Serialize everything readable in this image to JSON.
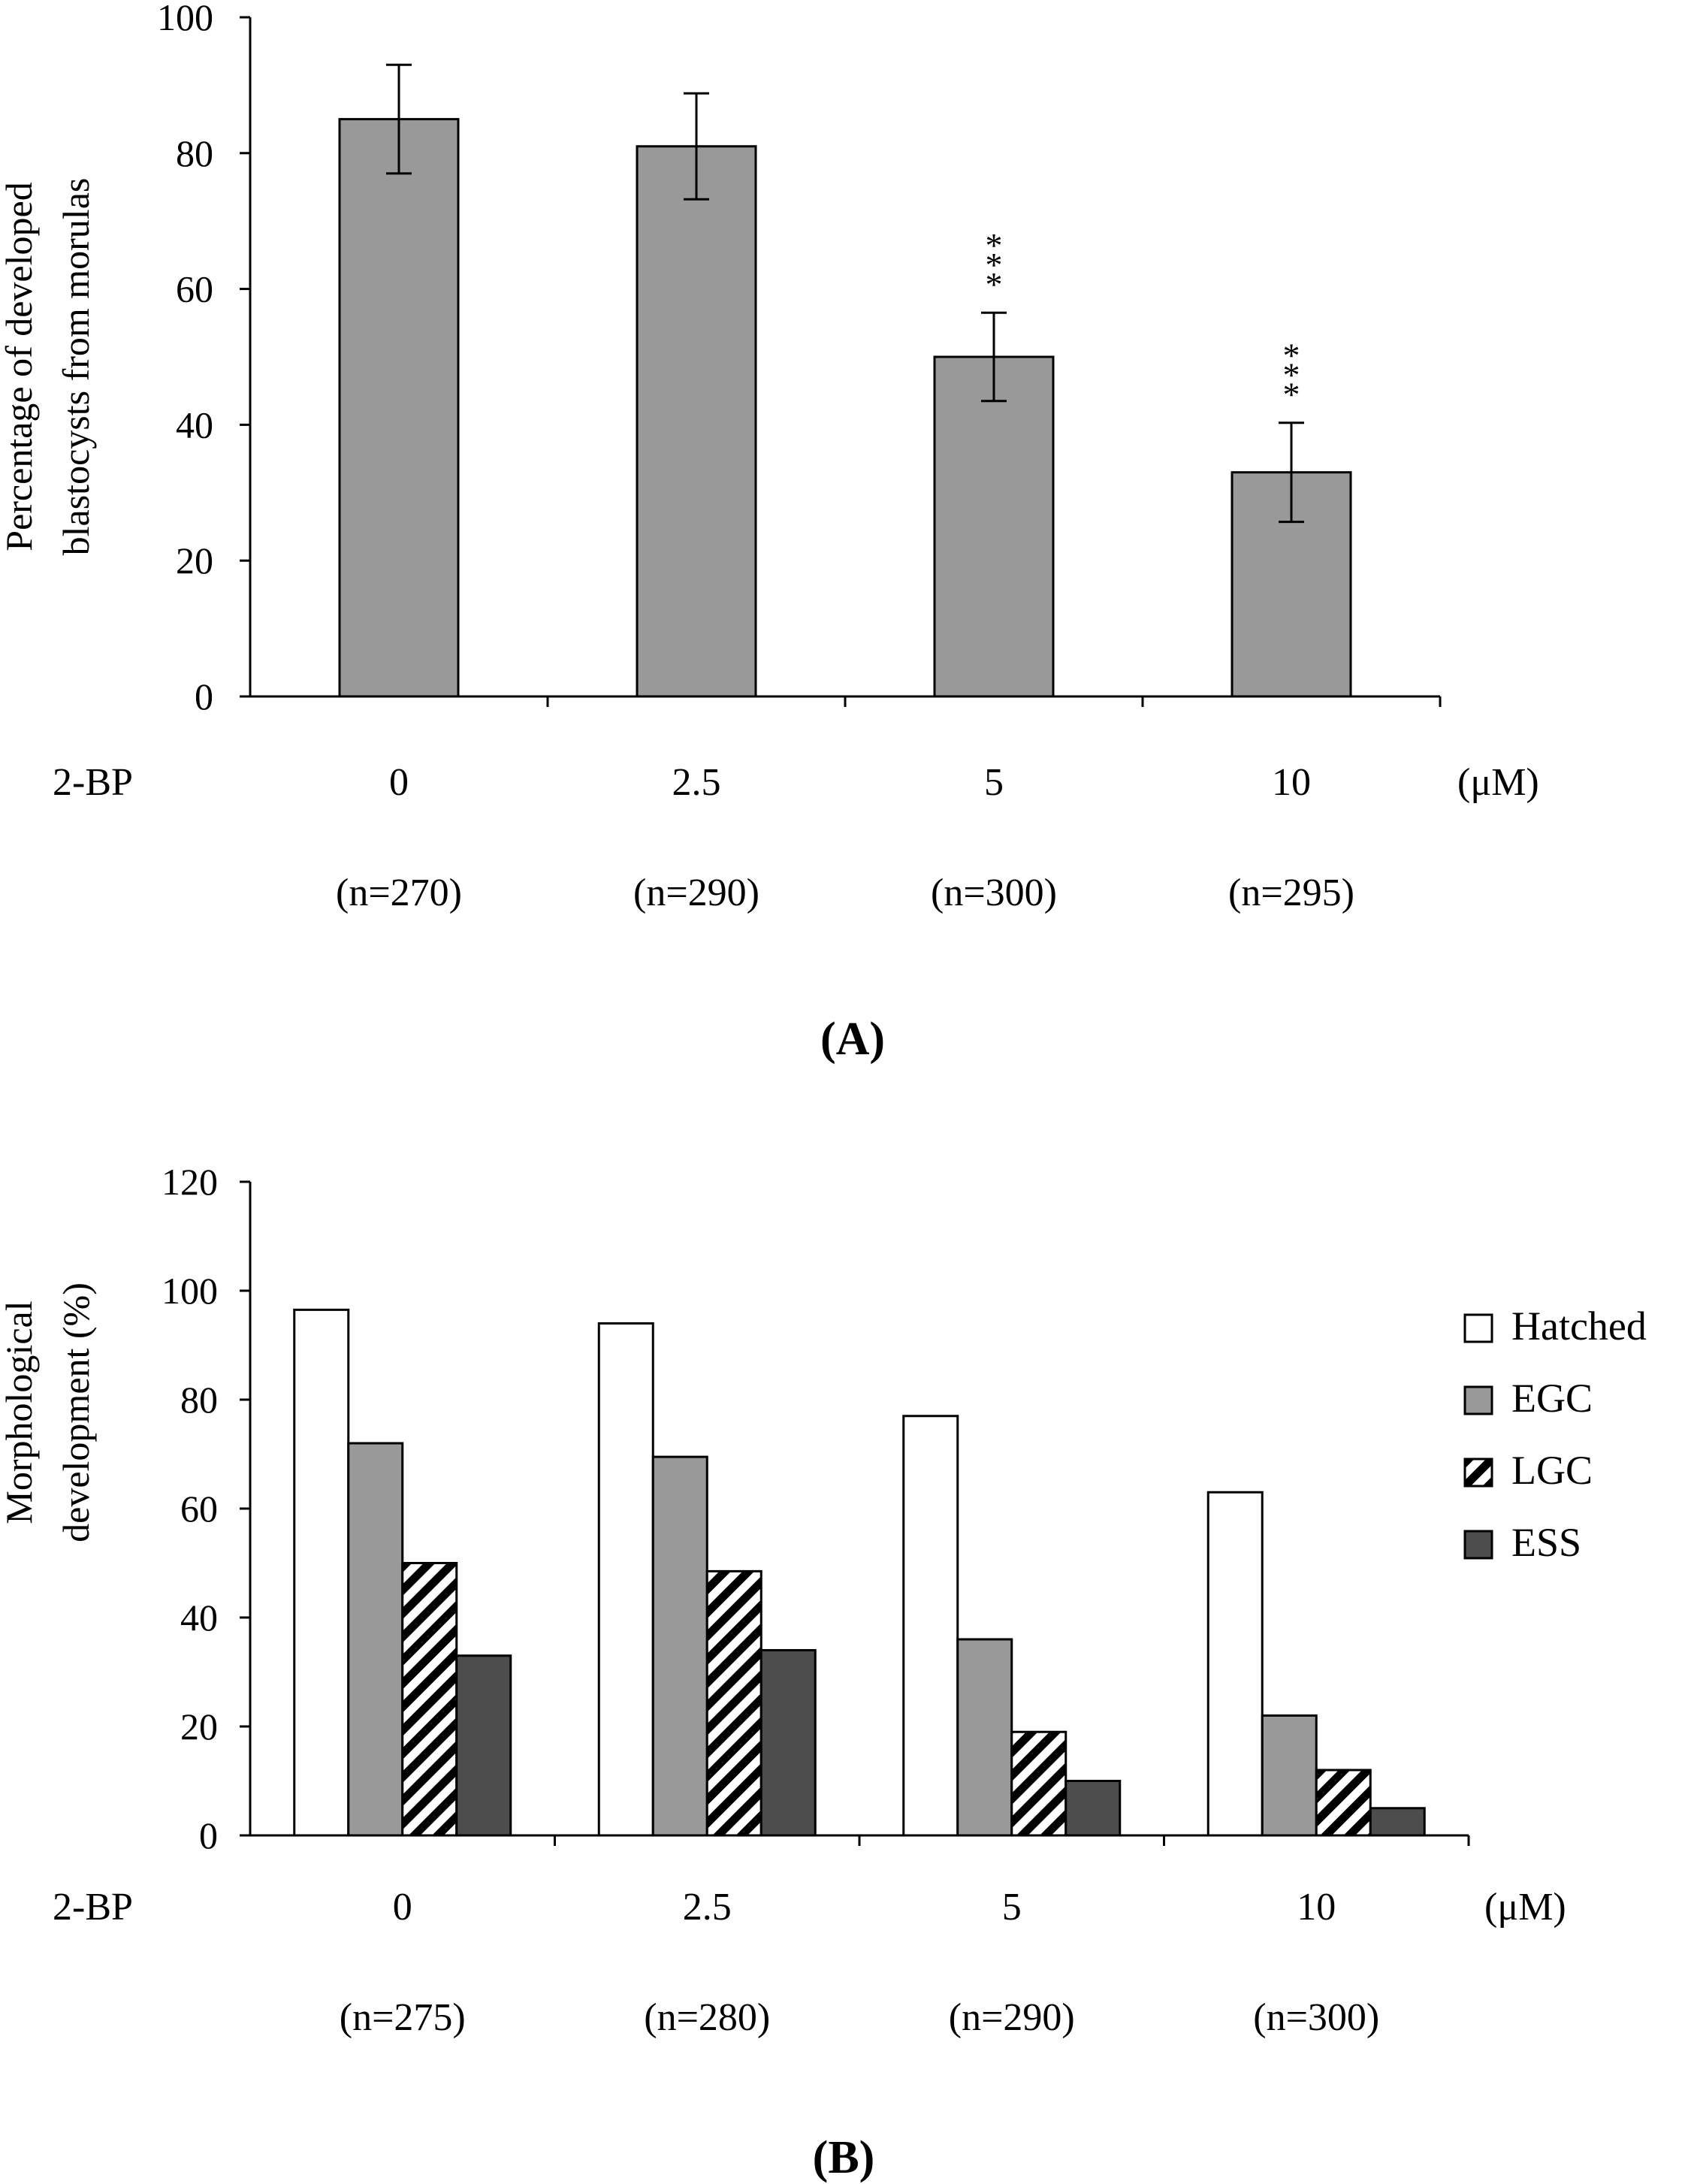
{
  "chart_data": [
    {
      "type": "bar",
      "panel_label": "(A)",
      "ylabel_lines": [
        "Percentage of developed",
        "blastocysts from morulas"
      ],
      "ylim": [
        0,
        100
      ],
      "yticks": [
        "0",
        "20",
        "40",
        "60",
        "80",
        "100"
      ],
      "row_label": "2-BP",
      "unit": "(μM)",
      "categories": [
        "0",
        "2.5",
        "5",
        "10"
      ],
      "n_labels": [
        "(n=270)",
        "(n=290)",
        "(n=300)",
        "(n=295)"
      ],
      "values": [
        85,
        81,
        50,
        33
      ],
      "errors": [
        8,
        7.8,
        6.5,
        7.3
      ],
      "significance": [
        "",
        "",
        "***",
        "***"
      ],
      "bar_color": "#999999"
    },
    {
      "type": "bar",
      "panel_label": "(B)",
      "ylabel_lines": [
        "Morphological",
        "development (%)"
      ],
      "ylim": [
        0,
        120
      ],
      "yticks": [
        "0",
        "20",
        "40",
        "60",
        "80",
        "100",
        "120"
      ],
      "row_label": "2-BP",
      "unit": "(μM)",
      "categories": [
        "0",
        "2.5",
        "5",
        "10"
      ],
      "n_labels": [
        "(n=275)",
        "(n=280)",
        "(n=290)",
        "(n=300)"
      ],
      "series": [
        {
          "name": "Hatched",
          "values": [
            96.5,
            94,
            77,
            63
          ],
          "style": "white"
        },
        {
          "name": "EGC",
          "values": [
            72,
            69.5,
            36,
            22
          ],
          "style": "gray"
        },
        {
          "name": "LGC",
          "values": [
            50,
            48.5,
            19,
            12
          ],
          "style": "hatch"
        },
        {
          "name": "ESS",
          "values": [
            33,
            34,
            10,
            5
          ],
          "style": "dark"
        }
      ],
      "legend_position": "right"
    }
  ]
}
